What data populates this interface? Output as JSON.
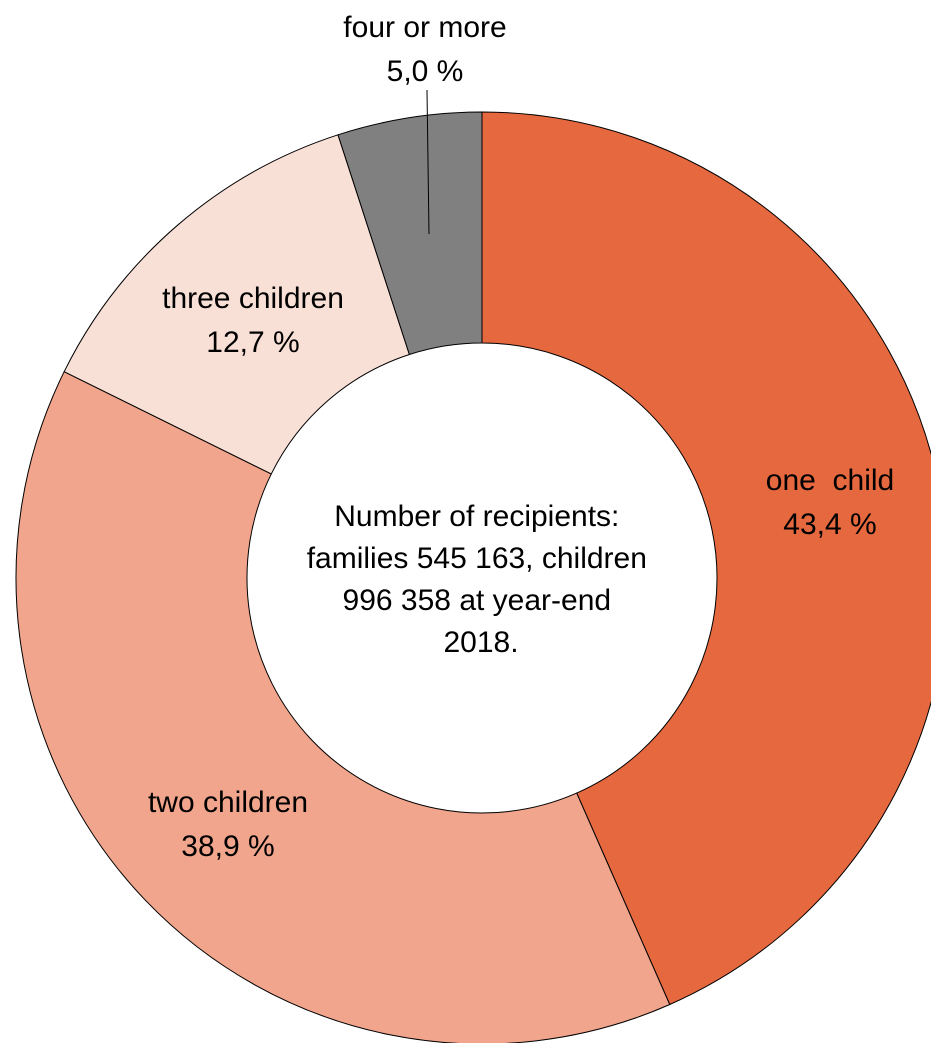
{
  "chart_data": {
    "type": "pie",
    "variant": "donut",
    "categories": [
      "one  child",
      "two children",
      "three children",
      "four or more"
    ],
    "values": [
      43.4,
      38.9,
      12.7,
      5.0
    ],
    "value_labels": [
      "43,4 %",
      "38,9 %",
      "12,7 %",
      "5,0 %"
    ],
    "colors": [
      "#E5683F",
      "#F0A58C",
      "#F9E0D6",
      "#808080"
    ],
    "center_text": [
      "Number of recipients:",
      "families 545 163, children",
      "996 358 at year-end",
      "2018."
    ],
    "legend": "none"
  }
}
